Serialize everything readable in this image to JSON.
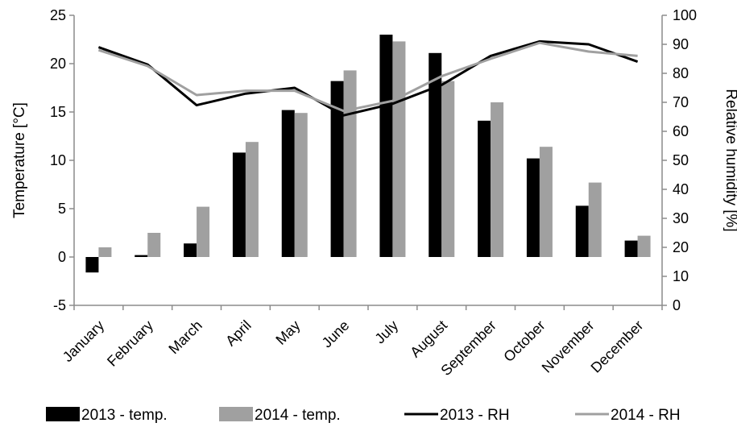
{
  "chart_data": {
    "type": "bar",
    "categories": [
      "January",
      "February",
      "March",
      "April",
      "May",
      "June",
      "July",
      "August",
      "September",
      "October",
      "November",
      "December"
    ],
    "series": [
      {
        "name": "2013 - temp.",
        "type": "bar",
        "axis": "left",
        "color": "#000000",
        "values": [
          -1.6,
          0.2,
          1.4,
          10.8,
          15.2,
          18.2,
          23.0,
          21.1,
          14.1,
          10.2,
          5.3,
          1.7
        ]
      },
      {
        "name": "2014 - temp.",
        "type": "bar",
        "axis": "left",
        "color": "#a0a0a0",
        "values": [
          1.0,
          2.5,
          5.2,
          11.9,
          14.9,
          19.3,
          22.3,
          18.2,
          16.0,
          11.4,
          7.7,
          2.2
        ]
      },
      {
        "name": "2013 - RH",
        "type": "line",
        "axis": "right",
        "color": "#000000",
        "values": [
          89,
          83,
          69,
          73,
          75,
          65.5,
          69.5,
          76,
          86,
          91,
          90,
          84
        ]
      },
      {
        "name": "2014 - RH",
        "type": "line",
        "axis": "right",
        "color": "#a0a0a0",
        "values": [
          88,
          82.5,
          72.5,
          74,
          74,
          67,
          70.5,
          79,
          85,
          90.5,
          87.5,
          86
        ]
      }
    ],
    "ylabel": "Temperature  [°C]",
    "y2label": "Relative humidity [%]",
    "ylim": [
      -5,
      25
    ],
    "y2lim": [
      0,
      100
    ],
    "yticks": [
      "-5",
      "0",
      "5",
      "10",
      "15",
      "20",
      "25"
    ],
    "y2ticks": [
      "0",
      "10",
      "20",
      "30",
      "40",
      "50",
      "60",
      "70",
      "80",
      "90",
      "100"
    ],
    "grid": false,
    "legend_position": "bottom"
  }
}
